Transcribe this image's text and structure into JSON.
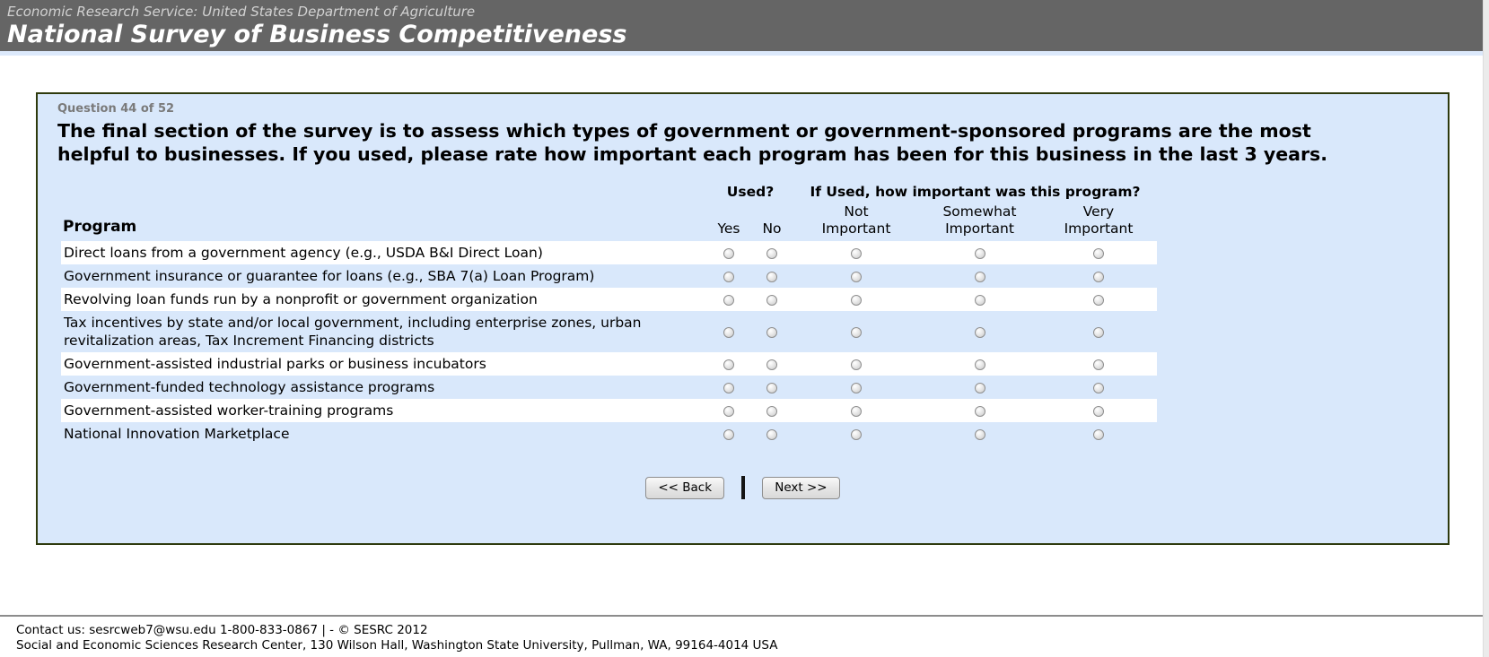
{
  "header": {
    "agency": "Economic Research Service: United States Department of Agriculture",
    "title": "National Survey of Business Competitiveness"
  },
  "survey": {
    "question_counter": "Question 44 of 52",
    "question_text": "The final section of the survey is to assess which types of government or government-sponsored programs are the most helpful to businesses. If you used, please rate how important each program has been for this business in the last 3 years.",
    "table": {
      "program_header": "Program",
      "group_used": "Used?",
      "group_importance": "If Used, how important was this program?",
      "columns": {
        "yes": "Yes",
        "no": "No",
        "not_top": "Not",
        "not_bottom": "Important",
        "some_top": "Somewhat",
        "some_bottom": "Important",
        "very_top": "Very",
        "very_bottom": "Important"
      },
      "rows": [
        "Direct loans from a government agency (e.g., USDA B&I Direct Loan)",
        "Government insurance or guarantee for loans (e.g., SBA 7(a) Loan Program)",
        "Revolving loan funds run by a nonprofit or government organization",
        "Tax incentives by state and/or local government, including enterprise zones, urban revitalization areas, Tax Increment Financing districts",
        "Government-assisted industrial parks or business incubators",
        "Government-funded technology assistance programs",
        "Government-assisted worker-training programs",
        "National Innovation Marketplace"
      ]
    },
    "buttons": {
      "back": "<< Back",
      "next": "Next >>"
    }
  },
  "footer": {
    "line1": "Contact us: sesrcweb7@wsu.edu 1-800-833-0867 | - © SESRC 2012",
    "line2": "Social and Economic Sciences Research Center, 130 Wilson Hall, Washington State University, Pullman, WA, 99164-4014 USA"
  },
  "colors": {
    "header_bg": "#656565",
    "panel_bg": "#d9e8fb",
    "panel_border": "#2e3a0d",
    "accent_strip": "#dce9fb"
  }
}
